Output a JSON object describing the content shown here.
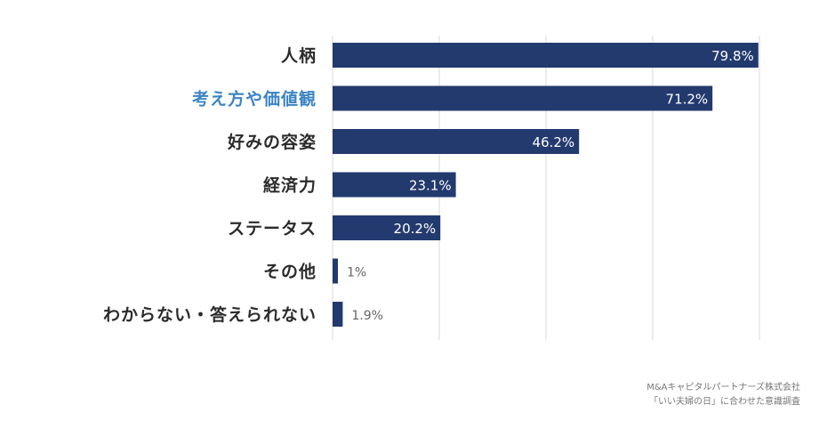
{
  "chart_data": {
    "type": "bar",
    "orientation": "horizontal",
    "categories": [
      "人柄",
      "考え方や価値観",
      "好みの容姿",
      "経済力",
      "ステータス",
      "その他",
      "わからない・答えられない"
    ],
    "values": [
      79.8,
      71.2,
      46.2,
      23.1,
      20.2,
      1,
      1.9
    ],
    "value_labels": [
      "79.8%",
      "71.2%",
      "46.2%",
      "23.1%",
      "20.2%",
      "1%",
      "1.9%"
    ],
    "xlim": [
      0,
      80
    ],
    "gridlines": [
      0,
      20,
      40,
      60,
      80
    ],
    "grid": true,
    "title": "",
    "xlabel": "",
    "ylabel": "",
    "highlight_category_index": 1
  },
  "colors": {
    "bar": "#233a6e",
    "label_default": "#2b2b2b",
    "label_highlight": "#3b84c4",
    "grid": "#d9d9d9"
  },
  "source": {
    "line1": "M&Aキャピタルパートナーズ株式会社",
    "line2": "「いい夫婦の日」に合わせた意識調査"
  }
}
